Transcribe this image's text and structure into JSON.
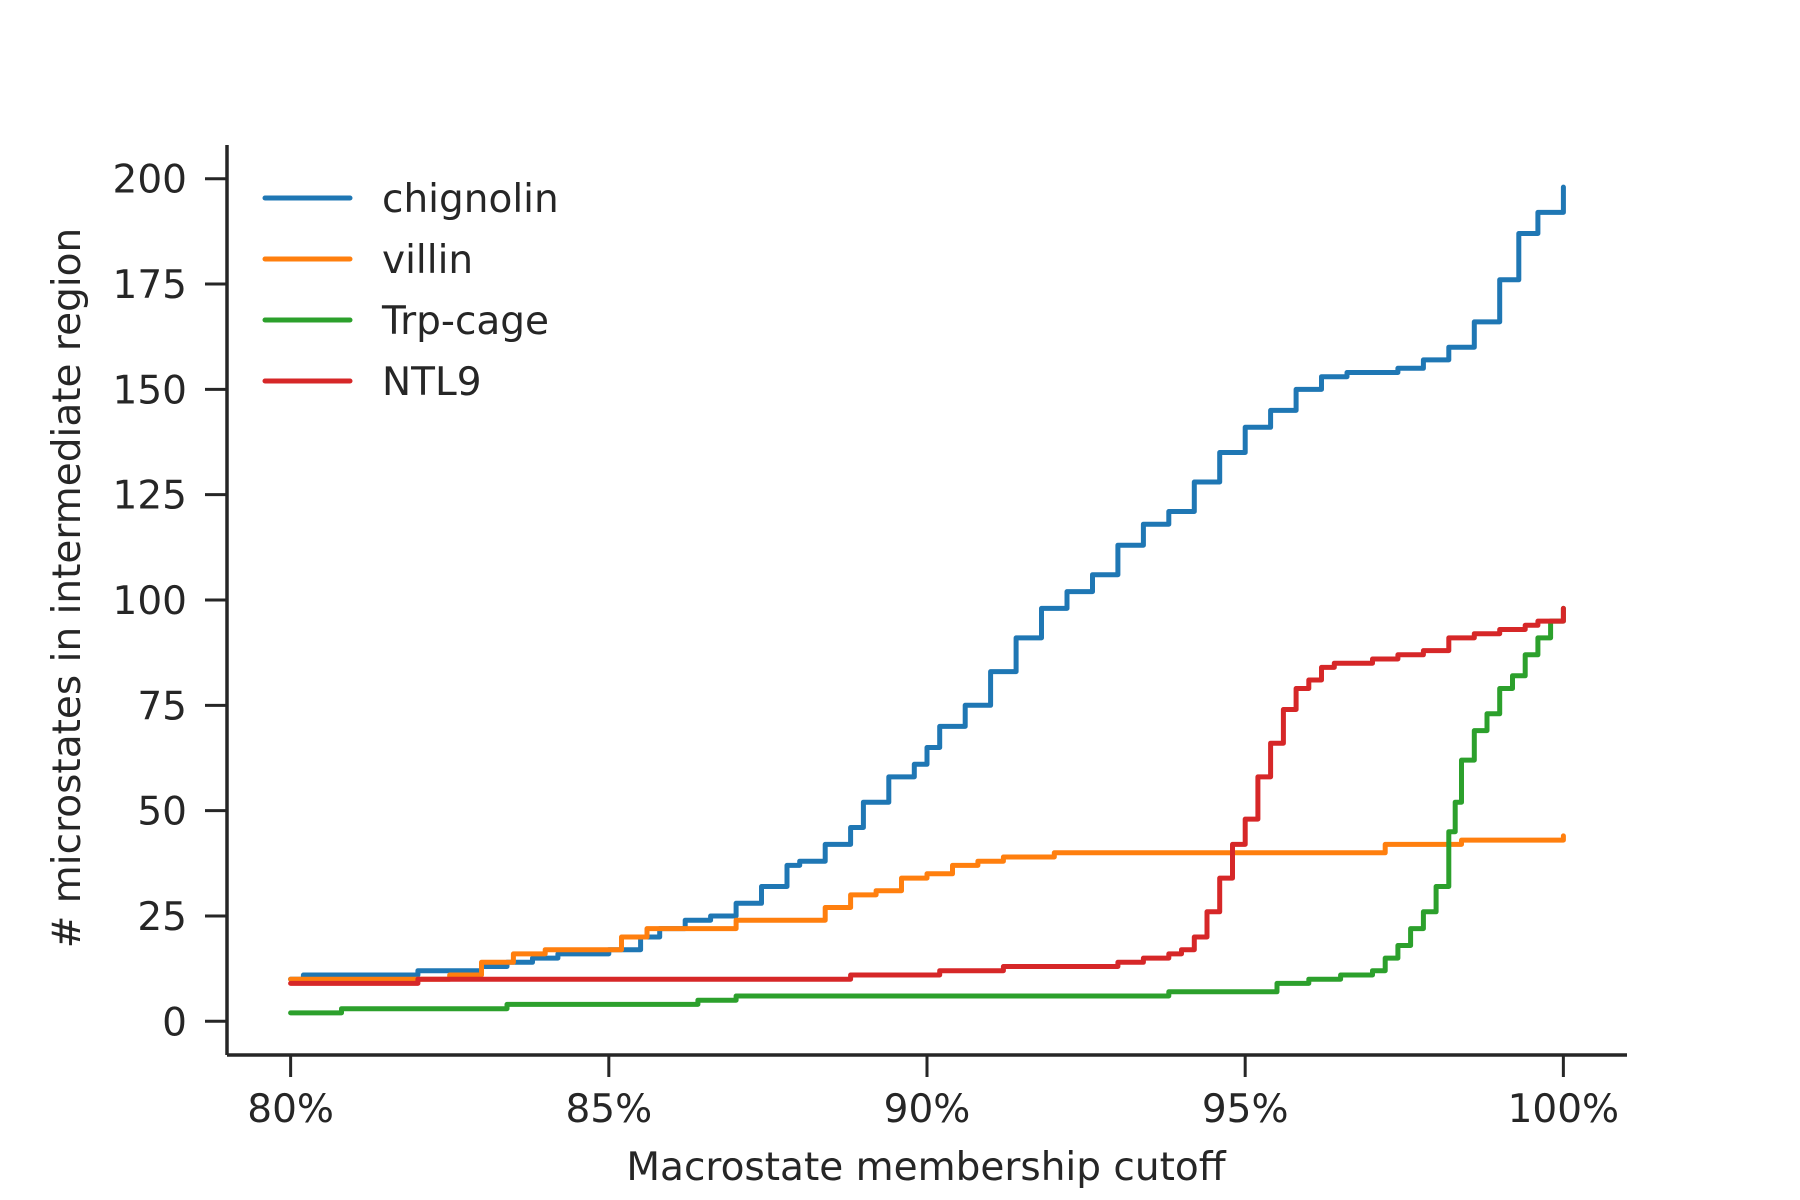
{
  "chart_data": {
    "type": "line",
    "title": "",
    "xlabel": "Macrostate membership cutoff",
    "ylabel": "# microstates in intermediate region",
    "xlim": [
      0.79,
      1.01
    ],
    "ylim": [
      -8,
      208
    ],
    "xticks": [
      0.8,
      0.85,
      0.9,
      0.95,
      1.0
    ],
    "xtick_labels": [
      "80%",
      "85%",
      "90%",
      "95%",
      "100%"
    ],
    "yticks": [
      0,
      25,
      50,
      75,
      100,
      125,
      150,
      175,
      200
    ],
    "ytick_labels": [
      "0",
      "25",
      "50",
      "75",
      "100",
      "125",
      "150",
      "175",
      "200"
    ],
    "grid": false,
    "legend_position": "top-left",
    "series": [
      {
        "name": "chignolin",
        "color": "#1f77b4",
        "x": [
          0.8,
          0.802,
          0.81,
          0.82,
          0.83,
          0.834,
          0.838,
          0.842,
          0.846,
          0.85,
          0.855,
          0.858,
          0.862,
          0.866,
          0.87,
          0.874,
          0.878,
          0.88,
          0.884,
          0.888,
          0.89,
          0.894,
          0.898,
          0.9,
          0.902,
          0.906,
          0.91,
          0.914,
          0.918,
          0.922,
          0.926,
          0.93,
          0.934,
          0.938,
          0.942,
          0.946,
          0.95,
          0.954,
          0.958,
          0.962,
          0.966,
          0.97,
          0.974,
          0.978,
          0.982,
          0.986,
          0.99,
          0.993,
          0.996,
          1.0
        ],
        "y": [
          10,
          11,
          11,
          12,
          13,
          14,
          15,
          16,
          16,
          17,
          20,
          22,
          24,
          25,
          28,
          32,
          37,
          38,
          42,
          46,
          52,
          58,
          61,
          65,
          70,
          75,
          83,
          91,
          98,
          102,
          106,
          113,
          118,
          121,
          128,
          135,
          141,
          145,
          150,
          153,
          154,
          154,
          155,
          157,
          160,
          166,
          176,
          187,
          192,
          198
        ]
      },
      {
        "name": "villin",
        "color": "#ff7f0e",
        "x": [
          0.8,
          0.82,
          0.825,
          0.83,
          0.835,
          0.84,
          0.845,
          0.85,
          0.852,
          0.856,
          0.86,
          0.865,
          0.87,
          0.875,
          0.88,
          0.884,
          0.888,
          0.892,
          0.896,
          0.9,
          0.904,
          0.908,
          0.912,
          0.916,
          0.92,
          0.93,
          0.94,
          0.95,
          0.96,
          0.97,
          0.972,
          0.98,
          0.984,
          0.99,
          0.996,
          1.0
        ],
        "y": [
          10,
          10,
          11,
          14,
          16,
          17,
          17,
          17,
          20,
          22,
          22,
          22,
          24,
          24,
          24,
          27,
          30,
          31,
          34,
          35,
          37,
          38,
          39,
          39,
          40,
          40,
          40,
          40,
          40,
          40,
          42,
          42,
          43,
          43,
          43,
          44
        ]
      },
      {
        "name": "Trp-cage",
        "color": "#2ca02c",
        "x": [
          0.8,
          0.806,
          0.808,
          0.83,
          0.834,
          0.86,
          0.864,
          0.868,
          0.87,
          0.9,
          0.936,
          0.938,
          0.95,
          0.955,
          0.96,
          0.965,
          0.97,
          0.972,
          0.974,
          0.976,
          0.978,
          0.98,
          0.982,
          0.983,
          0.984,
          0.986,
          0.988,
          0.99,
          0.992,
          0.994,
          0.996,
          0.998,
          1.0
        ],
        "y": [
          2,
          2,
          3,
          3,
          4,
          4,
          5,
          5,
          6,
          6,
          6,
          7,
          7,
          9,
          10,
          11,
          12,
          15,
          18,
          22,
          26,
          32,
          45,
          52,
          62,
          69,
          73,
          79,
          82,
          87,
          91,
          95,
          98
        ]
      },
      {
        "name": "NTL9",
        "color": "#d62728",
        "x": [
          0.8,
          0.818,
          0.82,
          0.86,
          0.886,
          0.888,
          0.9,
          0.902,
          0.91,
          0.912,
          0.92,
          0.93,
          0.934,
          0.938,
          0.94,
          0.942,
          0.944,
          0.946,
          0.948,
          0.95,
          0.952,
          0.954,
          0.956,
          0.958,
          0.96,
          0.962,
          0.964,
          0.966,
          0.97,
          0.974,
          0.978,
          0.982,
          0.986,
          0.99,
          0.994,
          0.996,
          1.0
        ],
        "y": [
          9,
          9,
          10,
          10,
          10,
          11,
          11,
          12,
          12,
          13,
          13,
          14,
          15,
          16,
          17,
          20,
          26,
          34,
          42,
          48,
          58,
          66,
          74,
          79,
          81,
          84,
          85,
          85,
          86,
          87,
          88,
          91,
          92,
          93,
          94,
          95,
          98
        ]
      }
    ]
  }
}
